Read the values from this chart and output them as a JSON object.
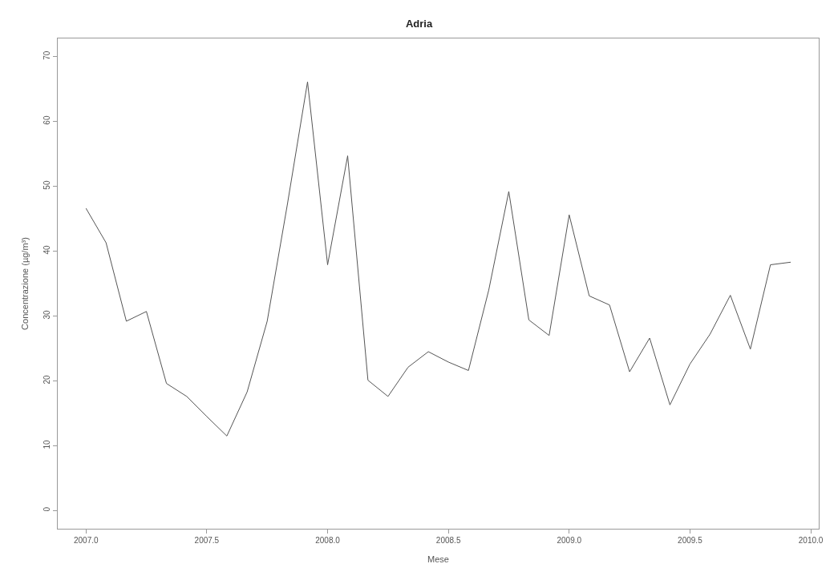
{
  "chart_data": {
    "type": "line",
    "title": "Adria",
    "xlabel": "Mese",
    "ylabel": "Concentrazione (µg/m³)",
    "x": [
      2007.0,
      2007.083,
      2007.167,
      2007.25,
      2007.333,
      2007.417,
      2007.5,
      2007.583,
      2007.667,
      2007.75,
      2007.833,
      2007.917,
      2008.0,
      2008.083,
      2008.167,
      2008.25,
      2008.333,
      2008.417,
      2008.5,
      2008.583,
      2008.667,
      2008.75,
      2008.833,
      2008.917,
      2009.0,
      2009.083,
      2009.167,
      2009.25,
      2009.333,
      2009.417,
      2009.5,
      2009.583,
      2009.667,
      2009.75,
      2009.833,
      2009.917
    ],
    "series": [
      {
        "color": "#555555",
        "values": [
          46.6,
          41.3,
          29.2,
          30.7,
          19.6,
          17.6,
          14.5,
          11.5,
          18.3,
          29.2,
          47.1,
          66.1,
          37.9,
          54.7,
          20.1,
          17.6,
          22.1,
          24.5,
          22.9,
          21.6,
          34.0,
          49.2,
          29.4,
          27.0,
          45.6,
          33.1,
          31.7,
          21.4,
          26.6,
          16.3,
          22.6,
          27.2,
          33.2,
          24.9,
          37.9,
          38.3
        ]
      }
    ],
    "xlim": [
      2006.883,
      2010.033
    ],
    "ylim": [
      -2.8,
      72.8
    ],
    "xticks": [
      {
        "value": 2007.0,
        "label": "2007.0"
      },
      {
        "value": 2007.5,
        "label": "2007.5"
      },
      {
        "value": 2008.0,
        "label": "2008.0"
      },
      {
        "value": 2008.5,
        "label": "2008.5"
      },
      {
        "value": 2009.0,
        "label": "2009.0"
      },
      {
        "value": 2009.5,
        "label": "2009.5"
      },
      {
        "value": 2010.0,
        "label": "2010.0"
      }
    ],
    "yticks": [
      0,
      10,
      20,
      30,
      40,
      50,
      60,
      70
    ],
    "legend": false,
    "marker": "none",
    "line_style": "solid"
  }
}
